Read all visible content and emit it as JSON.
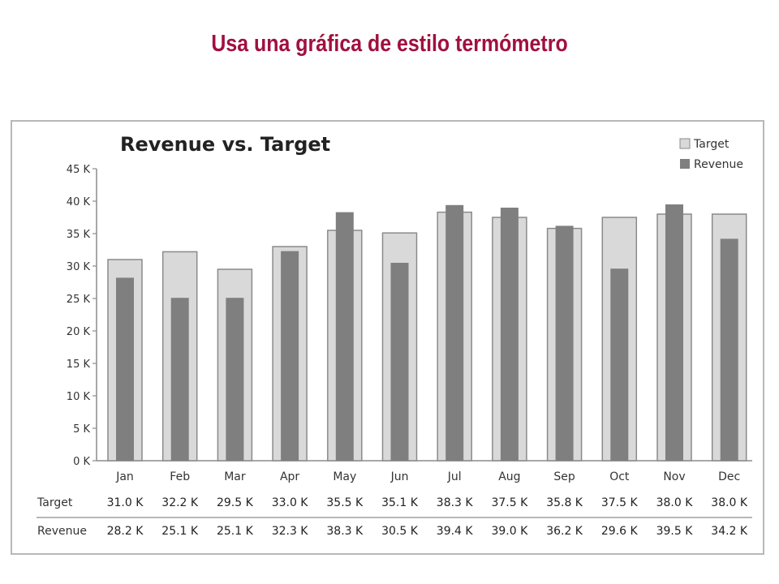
{
  "slide": {
    "title": "Usa una gráfica de estilo termómetro"
  },
  "chart_data": {
    "type": "bar",
    "title": "Revenue vs. Target",
    "categories": [
      "Jan",
      "Feb",
      "Mar",
      "Apr",
      "May",
      "Jun",
      "Jul",
      "Aug",
      "Sep",
      "Oct",
      "Nov",
      "Dec"
    ],
    "series": [
      {
        "name": "Target",
        "values": [
          31.0,
          32.2,
          29.5,
          33.0,
          35.5,
          35.1,
          38.3,
          37.5,
          35.8,
          37.5,
          38.0,
          38.0
        ],
        "color": "#d9d9d9",
        "labels": [
          "31.0 K",
          "32.2 K",
          "29.5 K",
          "33.0 K",
          "35.5 K",
          "35.1 K",
          "38.3 K",
          "37.5 K",
          "35.8 K",
          "37.5 K",
          "38.0 K",
          "38.0 K"
        ]
      },
      {
        "name": "Revenue",
        "values": [
          28.2,
          25.1,
          25.1,
          32.3,
          38.3,
          30.5,
          39.4,
          39.0,
          36.2,
          29.6,
          39.5,
          34.2
        ],
        "color": "#7f7f7f",
        "labels": [
          "28.2 K",
          "25.1 K",
          "25.1 K",
          "32.3 K",
          "38.3 K",
          "30.5 K",
          "39.4 K",
          "39.0 K",
          "36.2 K",
          "29.6 K",
          "39.5 K",
          "34.2 K"
        ]
      }
    ],
    "ylim": [
      0,
      45
    ],
    "yticks": [
      0,
      5,
      10,
      15,
      20,
      25,
      30,
      35,
      40,
      45
    ],
    "ytick_labels": [
      "0 K",
      "5 K",
      "10 K",
      "15 K",
      "20 K",
      "25 K",
      "30 K",
      "35 K",
      "40 K",
      "45 K"
    ],
    "legend_position": "top-right",
    "grid": false,
    "table": {
      "row_labels": [
        "Target",
        "Revenue"
      ]
    },
    "style": "thermometer (revenue bar drawn inside wider target bar)"
  }
}
